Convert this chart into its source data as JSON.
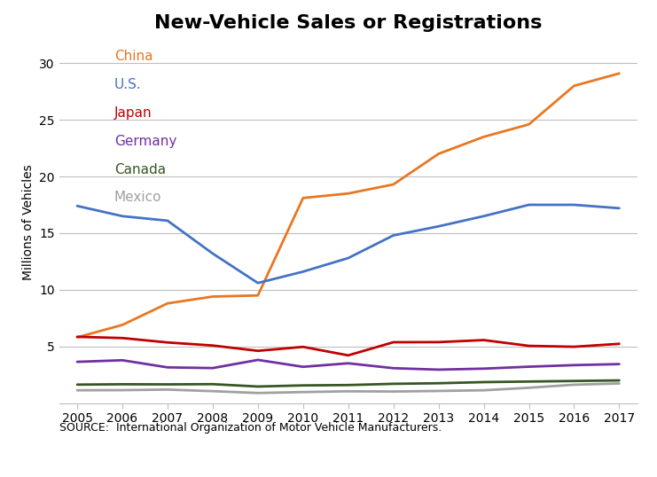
{
  "title": "New-Vehicle Sales or Registrations",
  "ylabel": "Millions of Vehicles",
  "source_text": "SOURCE:  International Organization of Motor Vehicle Manufacturers.",
  "years": [
    2005,
    2006,
    2007,
    2008,
    2009,
    2010,
    2011,
    2012,
    2013,
    2014,
    2015,
    2016,
    2017
  ],
  "series": {
    "China": {
      "color": "#E87722",
      "values": [
        5.8,
        6.9,
        8.8,
        9.4,
        9.5,
        18.1,
        18.5,
        19.3,
        22.0,
        23.5,
        24.6,
        28.0,
        29.1
      ]
    },
    "U.S.": {
      "color": "#4472C4",
      "values": [
        17.4,
        16.5,
        16.1,
        13.2,
        10.6,
        11.6,
        12.8,
        14.8,
        15.6,
        16.5,
        17.5,
        17.5,
        17.2
      ]
    },
    "Japan": {
      "color": "#C00000",
      "values": [
        5.85,
        5.74,
        5.35,
        5.08,
        4.61,
        4.96,
        4.21,
        5.37,
        5.38,
        5.56,
        5.05,
        4.97,
        5.23
      ]
    },
    "Germany": {
      "color": "#7030A0",
      "values": [
        3.64,
        3.78,
        3.15,
        3.09,
        3.81,
        3.2,
        3.51,
        3.08,
        2.95,
        3.04,
        3.21,
        3.35,
        3.44
      ]
    },
    "Canada": {
      "color": "#375623",
      "values": [
        1.63,
        1.66,
        1.65,
        1.67,
        1.46,
        1.56,
        1.59,
        1.7,
        1.75,
        1.85,
        1.9,
        1.95,
        2.0
      ]
    },
    "Mexico": {
      "color": "#A0A0A0",
      "values": [
        1.13,
        1.14,
        1.19,
        1.05,
        0.89,
        0.97,
        1.04,
        1.02,
        1.07,
        1.13,
        1.35,
        1.62,
        1.73
      ]
    }
  },
  "ylim": [
    0,
    32
  ],
  "yticks": [
    5,
    10,
    15,
    20,
    25,
    30
  ],
  "legend_order": [
    "China",
    "U.S.",
    "Japan",
    "Germany",
    "Canada",
    "Mexico"
  ],
  "footer_bg_color": "#1F3864",
  "footer_text_color": "#FFFFFF",
  "grid_color": "#BFBFBF",
  "title_fontsize": 16,
  "axis_label_fontsize": 10,
  "legend_fontsize": 11,
  "tick_fontsize": 10,
  "source_fontsize": 9,
  "footer_fontsize": 11,
  "linewidth": 2.0
}
